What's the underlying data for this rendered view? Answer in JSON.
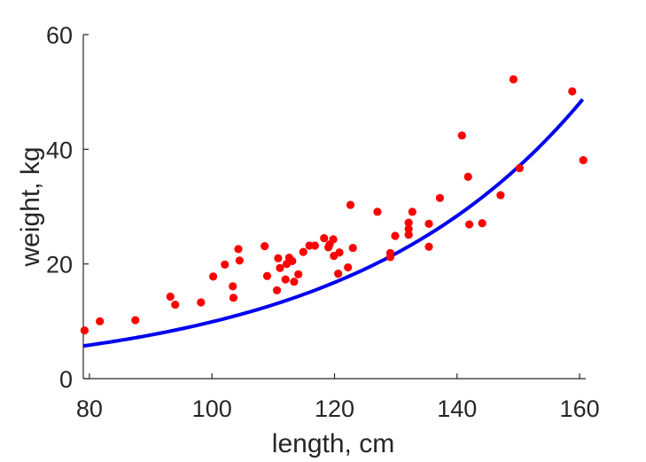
{
  "chart_data": {
    "type": "scatter",
    "title": "",
    "xlabel": "length, cm",
    "ylabel": "weight, kg",
    "xlim": [
      79,
      161
    ],
    "ylim": [
      0,
      60
    ],
    "xticks": [
      80,
      100,
      120,
      140,
      160
    ],
    "yticks": [
      0,
      20,
      40,
      60
    ],
    "grid": false,
    "legend": "none",
    "colors": {
      "points": "#ff0000",
      "fit": "#0000ee",
      "axis": "#262626"
    },
    "series": [
      {
        "type": "scatter",
        "points": [
          [
            79.2,
            8.4
          ],
          [
            81.7,
            10.0
          ],
          [
            87.5,
            10.2
          ],
          [
            93.2,
            14.3
          ],
          [
            94.0,
            12.9
          ],
          [
            98.2,
            13.3
          ],
          [
            100.2,
            17.8
          ],
          [
            102.1,
            19.9
          ],
          [
            103.4,
            16.1
          ],
          [
            103.5,
            14.1
          ],
          [
            104.3,
            22.6
          ],
          [
            104.5,
            20.6
          ],
          [
            108.6,
            23.1
          ],
          [
            109.0,
            17.9
          ],
          [
            110.6,
            15.4
          ],
          [
            110.8,
            21.0
          ],
          [
            111.1,
            19.3
          ],
          [
            112.0,
            17.3
          ],
          [
            112.2,
            20.0
          ],
          [
            112.6,
            21.1
          ],
          [
            113.1,
            20.5
          ],
          [
            113.4,
            16.9
          ],
          [
            114.1,
            18.2
          ],
          [
            114.9,
            22.1
          ],
          [
            115.9,
            23.2
          ],
          [
            116.8,
            23.2
          ],
          [
            118.3,
            24.5
          ],
          [
            119.0,
            22.9
          ],
          [
            119.2,
            23.4
          ],
          [
            119.8,
            24.3
          ],
          [
            119.9,
            21.4
          ],
          [
            120.6,
            18.3
          ],
          [
            120.8,
            22.0
          ],
          [
            122.2,
            19.4
          ],
          [
            122.6,
            30.3
          ],
          [
            123.0,
            22.8
          ],
          [
            127.0,
            29.1
          ],
          [
            129.1,
            21.2
          ],
          [
            129.1,
            21.9
          ],
          [
            129.9,
            24.9
          ],
          [
            132.1,
            25.1
          ],
          [
            132.1,
            26.1
          ],
          [
            132.1,
            27.2
          ],
          [
            132.7,
            29.1
          ],
          [
            135.4,
            27.0
          ],
          [
            135.4,
            23.0
          ],
          [
            137.2,
            31.5
          ],
          [
            140.8,
            42.4
          ],
          [
            141.8,
            35.2
          ],
          [
            142.0,
            26.9
          ],
          [
            144.1,
            27.1
          ],
          [
            147.1,
            32.0
          ],
          [
            149.2,
            52.2
          ],
          [
            150.2,
            36.7
          ],
          [
            158.8,
            50.1
          ],
          [
            160.6,
            38.1
          ]
        ]
      },
      {
        "type": "line",
        "fit": {
          "x0": 79,
          "y0": 5.7,
          "x1": 160.5,
          "y1": 48.7
        }
      }
    ]
  }
}
